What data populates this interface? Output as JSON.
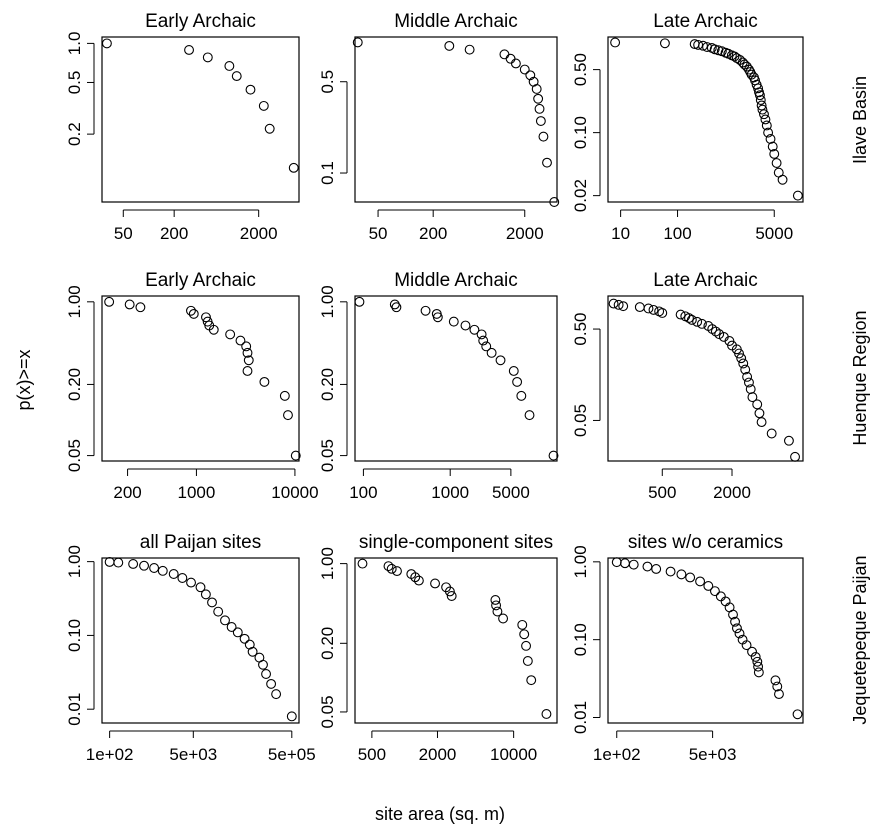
{
  "figure": {
    "xlabel": "site area (sq. m)",
    "ylabel": "p(x)>=x",
    "row_labels": [
      "Ilave Basin",
      "Huenque Region",
      "Jequetepeque Paijan"
    ]
  },
  "chart_data": [
    {
      "type": "scatter",
      "title": "Early Archaic",
      "row": "Ilave Basin",
      "xlog": true,
      "ylog": true,
      "xlim": [
        28,
        6000
      ],
      "ylim": [
        0.06,
        1.12
      ],
      "xticks": [
        50,
        200,
        2000
      ],
      "xticklabels": [
        "50",
        "200",
        "2000"
      ],
      "yticks": [
        1.0,
        0.5,
        0.2
      ],
      "yticklabels": [
        "1.0",
        "0.5",
        "0.2"
      ],
      "x": [
        32,
        300,
        500,
        900,
        1100,
        1600,
        2300,
        2700,
        5200
      ],
      "y": [
        1.0,
        0.89,
        0.78,
        0.67,
        0.56,
        0.44,
        0.33,
        0.22,
        0.11
      ]
    },
    {
      "type": "scatter",
      "title": "Middle Archaic",
      "row": "Ilave Basin",
      "xlog": true,
      "ylog": true,
      "xlim": [
        28,
        4500
      ],
      "ylim": [
        0.06,
        1.1
      ],
      "xticks": [
        50,
        200,
        2000
      ],
      "xticklabels": [
        "50",
        "200",
        "2000"
      ],
      "yticks": [
        0.5,
        0.1
      ],
      "yticklabels": [
        "0.5",
        "0.1"
      ],
      "x": [
        30,
        300,
        500,
        1200,
        1400,
        1600,
        2000,
        2300,
        2500,
        2700,
        2800,
        2900,
        3000,
        3200,
        3500,
        4200
      ],
      "y": [
        1.0,
        0.94,
        0.88,
        0.81,
        0.75,
        0.69,
        0.62,
        0.56,
        0.5,
        0.44,
        0.37,
        0.31,
        0.25,
        0.19,
        0.12,
        0.06
      ]
    },
    {
      "type": "scatter",
      "title": "Late Archaic",
      "row": "Ilave Basin",
      "xlog": true,
      "ylog": true,
      "xlim": [
        6,
        16000
      ],
      "ylim": [
        0.017,
        1.15
      ],
      "xticks": [
        10,
        100,
        5000
      ],
      "xticklabels": [
        "10",
        "100",
        "5000"
      ],
      "yticks": [
        0.5,
        0.1,
        0.02
      ],
      "yticklabels": [
        "0.50",
        "0.10",
        "0.02"
      ],
      "x": [
        8,
        60,
        200,
        230,
        280,
        330,
        400,
        450,
        520,
        600,
        700,
        780,
        900,
        1000,
        1100,
        1250,
        1400,
        1500,
        1650,
        1800,
        1900,
        2000,
        2200,
        2300,
        2450,
        2600,
        2700,
        2800,
        2900,
        3000,
        3100,
        3300,
        3500,
        3700,
        3900,
        4300,
        4700,
        5000,
        5500,
        6000,
        7000,
        13000
      ],
      "y": [
        1.0,
        0.98,
        0.96,
        0.94,
        0.92,
        0.89,
        0.87,
        0.84,
        0.82,
        0.8,
        0.77,
        0.75,
        0.72,
        0.7,
        0.67,
        0.64,
        0.6,
        0.57,
        0.54,
        0.5,
        0.47,
        0.44,
        0.41,
        0.38,
        0.34,
        0.31,
        0.28,
        0.26,
        0.23,
        0.2,
        0.18,
        0.16,
        0.14,
        0.12,
        0.1,
        0.085,
        0.07,
        0.058,
        0.046,
        0.036,
        0.03,
        0.02
      ]
    },
    {
      "type": "scatter",
      "title": "Early Archaic",
      "row": "Huenque Region",
      "xlog": true,
      "ylog": true,
      "xlim": [
        110,
        11000
      ],
      "ylim": [
        0.045,
        1.12
      ],
      "xticks": [
        200,
        1000,
        10000
      ],
      "xticklabels": [
        "200",
        "1000",
        "10000"
      ],
      "yticks": [
        1.0,
        0.2,
        0.05
      ],
      "yticklabels": [
        "1.00",
        "0.20",
        "0.05"
      ],
      "x": [
        130,
        210,
        270,
        880,
        940,
        1250,
        1300,
        1350,
        1500,
        2200,
        2800,
        3200,
        3300,
        3400,
        3300,
        4900,
        7900,
        8500,
        10200
      ],
      "y": [
        1.0,
        0.95,
        0.9,
        0.84,
        0.79,
        0.74,
        0.68,
        0.63,
        0.58,
        0.53,
        0.47,
        0.42,
        0.37,
        0.32,
        0.26,
        0.21,
        0.16,
        0.11,
        0.05
      ]
    },
    {
      "type": "scatter",
      "title": "Middle Archaic",
      "row": "Huenque Region",
      "xlog": true,
      "ylog": true,
      "xlim": [
        80,
        17000
      ],
      "ylim": [
        0.045,
        1.12
      ],
      "xticks": [
        100,
        1000,
        5000
      ],
      "xticklabels": [
        "100",
        "1000",
        "5000"
      ],
      "yticks": [
        1.0,
        0.2,
        0.05
      ],
      "yticklabels": [
        "1.00",
        "0.20",
        "0.05"
      ],
      "x": [
        90,
        230,
        240,
        520,
        700,
        720,
        1100,
        1500,
        1900,
        2300,
        2400,
        2600,
        3000,
        3800,
        5400,
        5900,
        6600,
        8200,
        15500
      ],
      "y": [
        1.0,
        0.95,
        0.9,
        0.84,
        0.79,
        0.74,
        0.68,
        0.63,
        0.58,
        0.53,
        0.47,
        0.42,
        0.37,
        0.32,
        0.26,
        0.21,
        0.16,
        0.11,
        0.05
      ]
    },
    {
      "type": "scatter",
      "title": "Late Archaic",
      "row": "Huenque Region",
      "xlog": true,
      "ylog": true,
      "xlim": [
        170,
        8200
      ],
      "ylim": [
        0.018,
        1.15
      ],
      "xticks": [
        500,
        2000
      ],
      "xticklabels": [
        "500",
        "2000"
      ],
      "yticks": [
        0.5,
        0.05
      ],
      "yticklabels": [
        "0.50",
        "0.05"
      ],
      "x": [
        190,
        210,
        230,
        320,
        380,
        420,
        470,
        500,
        720,
        790,
        850,
        900,
        1000,
        1100,
        1250,
        1350,
        1450,
        1550,
        1700,
        1900,
        2000,
        2200,
        2300,
        2400,
        2500,
        2600,
        2700,
        2800,
        2900,
        3000,
        3300,
        3450,
        3600,
        4400,
        6200,
        7000
      ],
      "y": [
        0.95,
        0.92,
        0.89,
        0.87,
        0.84,
        0.81,
        0.78,
        0.75,
        0.72,
        0.69,
        0.66,
        0.63,
        0.6,
        0.57,
        0.54,
        0.5,
        0.47,
        0.44,
        0.41,
        0.37,
        0.33,
        0.3,
        0.27,
        0.24,
        0.21,
        0.18,
        0.15,
        0.13,
        0.11,
        0.09,
        0.075,
        0.06,
        0.048,
        0.036,
        0.03,
        0.02
      ]
    },
    {
      "type": "scatter",
      "title": "all Paijan sites",
      "row": "Jequetepeque Paijan",
      "xlog": true,
      "ylog": true,
      "xlim": [
        70,
        700000
      ],
      "ylim": [
        0.0065,
        1.12
      ],
      "xticks": [
        100,
        5000,
        500000
      ],
      "xticklabels": [
        "1e+02",
        "5e+03",
        "5e+05"
      ],
      "yticks": [
        1.0,
        0.1,
        0.01
      ],
      "yticklabels": [
        "1.00",
        "0.10",
        "0.01"
      ],
      "x": [
        100,
        150,
        300,
        500,
        800,
        1200,
        2000,
        3000,
        4500,
        7000,
        9000,
        12000,
        16000,
        22000,
        30000,
        40000,
        55000,
        70000,
        80000,
        110000,
        130000,
        150000,
        190000,
        240000,
        500000
      ],
      "y": [
        0.99,
        0.97,
        0.93,
        0.88,
        0.82,
        0.75,
        0.68,
        0.6,
        0.52,
        0.45,
        0.36,
        0.28,
        0.21,
        0.16,
        0.13,
        0.11,
        0.09,
        0.075,
        0.06,
        0.05,
        0.04,
        0.03,
        0.022,
        0.016,
        0.008
      ]
    },
    {
      "type": "scatter",
      "title": "single-component sites",
      "row": "Jequetepeque Paijan",
      "xlog": true,
      "ylog": true,
      "xlim": [
        350,
        25000
      ],
      "ylim": [
        0.04,
        1.12
      ],
      "xticks": [
        500,
        2000,
        10000
      ],
      "xticklabels": [
        "500",
        "2000",
        "10000"
      ],
      "yticks": [
        1.0,
        0.2,
        0.05
      ],
      "yticklabels": [
        "1.00",
        "0.20",
        "0.05"
      ],
      "x": [
        410,
        710,
        760,
        850,
        1150,
        1250,
        1350,
        1900,
        2400,
        2600,
        2700,
        6800,
        6900,
        7100,
        8000,
        12000,
        12500,
        13000,
        13500,
        14500,
        20000
      ],
      "y": [
        1.0,
        0.95,
        0.9,
        0.86,
        0.81,
        0.76,
        0.71,
        0.67,
        0.62,
        0.57,
        0.52,
        0.48,
        0.43,
        0.38,
        0.33,
        0.29,
        0.24,
        0.19,
        0.14,
        0.095,
        0.048
      ]
    },
    {
      "type": "scatter",
      "title": "sites w/o ceramics",
      "row": "Jequetepeque Paijan",
      "xlog": true,
      "ylog": true,
      "xlim": [
        70,
        200000
      ],
      "ylim": [
        0.0085,
        1.12
      ],
      "xticks": [
        100,
        5000
      ],
      "xticklabels": [
        "1e+02",
        "5e+03"
      ],
      "yticks": [
        1.0,
        0.1,
        0.01
      ],
      "yticklabels": [
        "1.00",
        "0.10",
        "0.01"
      ],
      "x": [
        100,
        140,
        200,
        350,
        500,
        900,
        1400,
        2000,
        3000,
        4200,
        5500,
        7000,
        8500,
        10000,
        11500,
        12500,
        13500,
        15000,
        17000,
        20000,
        25000,
        29000,
        31000,
        32000,
        33000,
        65000,
        70000,
        75000,
        160000
      ],
      "y": [
        0.99,
        0.96,
        0.92,
        0.87,
        0.81,
        0.75,
        0.69,
        0.63,
        0.56,
        0.49,
        0.42,
        0.36,
        0.31,
        0.26,
        0.21,
        0.17,
        0.14,
        0.12,
        0.1,
        0.085,
        0.07,
        0.06,
        0.052,
        0.045,
        0.038,
        0.03,
        0.025,
        0.02,
        0.011
      ]
    }
  ]
}
